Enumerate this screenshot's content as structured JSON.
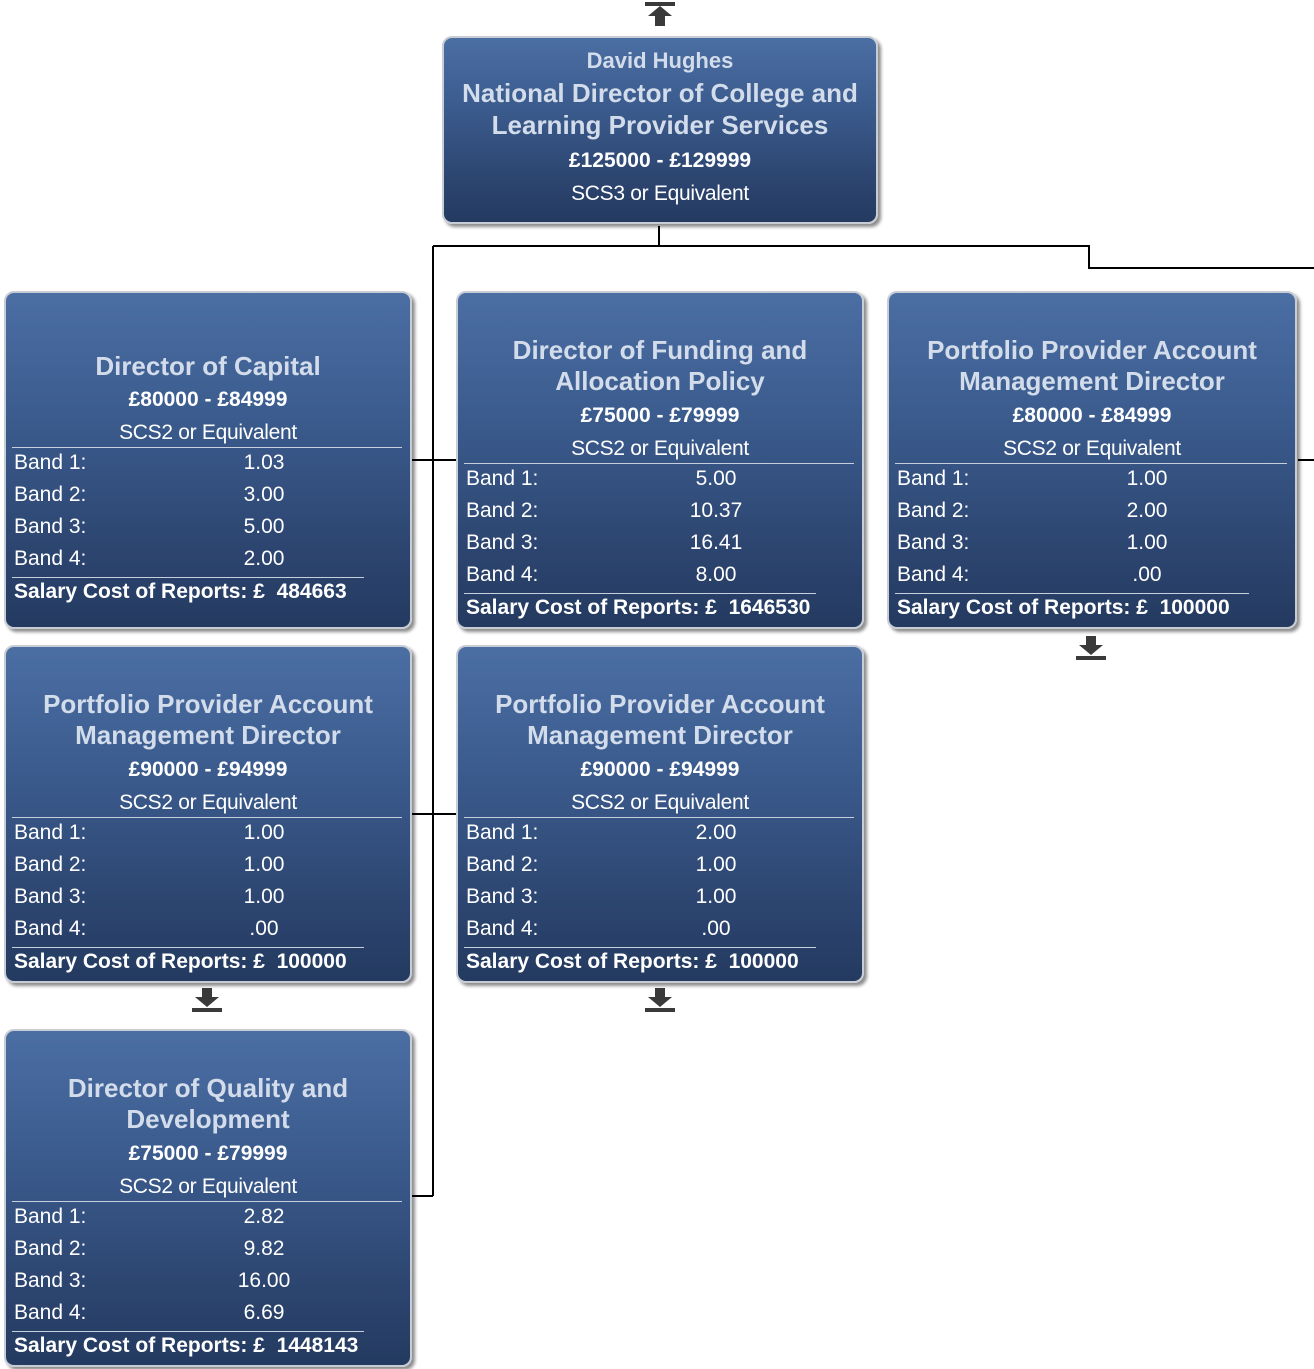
{
  "top": {
    "name": "David Hughes",
    "title_line1": "National Director of College and",
    "title_line2": "Learning Provider Services",
    "salary": "£125000 - £129999",
    "grade": "SCS3 or Equivalent"
  },
  "band_labels": [
    "Band 1:",
    "Band 2:",
    "Band 3:",
    "Band 4:"
  ],
  "cost_prefix": "Salary Cost of Reports: £",
  "cards": [
    {
      "title_line1": "Director of Capital",
      "title_line2": "",
      "salary": "£80000 - £84999",
      "grade": "SCS2 or Equivalent",
      "bands": [
        "1.03",
        "3.00",
        "5.00",
        "2.00"
      ],
      "cost": "484663"
    },
    {
      "title_line1": "Director of Funding and",
      "title_line2": "Allocation Policy",
      "salary": "£75000 - £79999",
      "grade": "SCS2 or Equivalent",
      "bands": [
        "5.00",
        "10.37",
        "16.41",
        "8.00"
      ],
      "cost": "1646530"
    },
    {
      "title_line1": "Portfolio Provider Account",
      "title_line2": "Management Director",
      "salary": "£80000 - £84999",
      "grade": "SCS2 or Equivalent",
      "bands": [
        "1.00",
        "2.00",
        "1.00",
        ".00"
      ],
      "cost": "100000"
    },
    {
      "title_line1": "Portfolio Provider Account",
      "title_line2": "Management Director",
      "salary": "£90000 - £94999",
      "grade": "SCS2 or Equivalent",
      "bands": [
        "1.00",
        "1.00",
        "1.00",
        ".00"
      ],
      "cost": "100000"
    },
    {
      "title_line1": "Portfolio Provider Account",
      "title_line2": "Management Director",
      "salary": "£90000 - £94999",
      "grade": "SCS2 or Equivalent",
      "bands": [
        "2.00",
        "1.00",
        "1.00",
        ".00"
      ],
      "cost": "100000"
    },
    {
      "title_line1": "Director of Quality and",
      "title_line2": "Development",
      "salary": "£75000 - £79999",
      "grade": "SCS2 or Equivalent",
      "bands": [
        "2.82",
        "9.82",
        "16.00",
        "6.69"
      ],
      "cost": "1448143"
    }
  ],
  "colors": {
    "card_top": "#4b6ea3",
    "card_bottom": "#243a60",
    "title_text": "#d3dcea",
    "connector": "#000000"
  },
  "icons": {
    "up": "navigate-up-icon",
    "down": "navigate-down-icon"
  }
}
